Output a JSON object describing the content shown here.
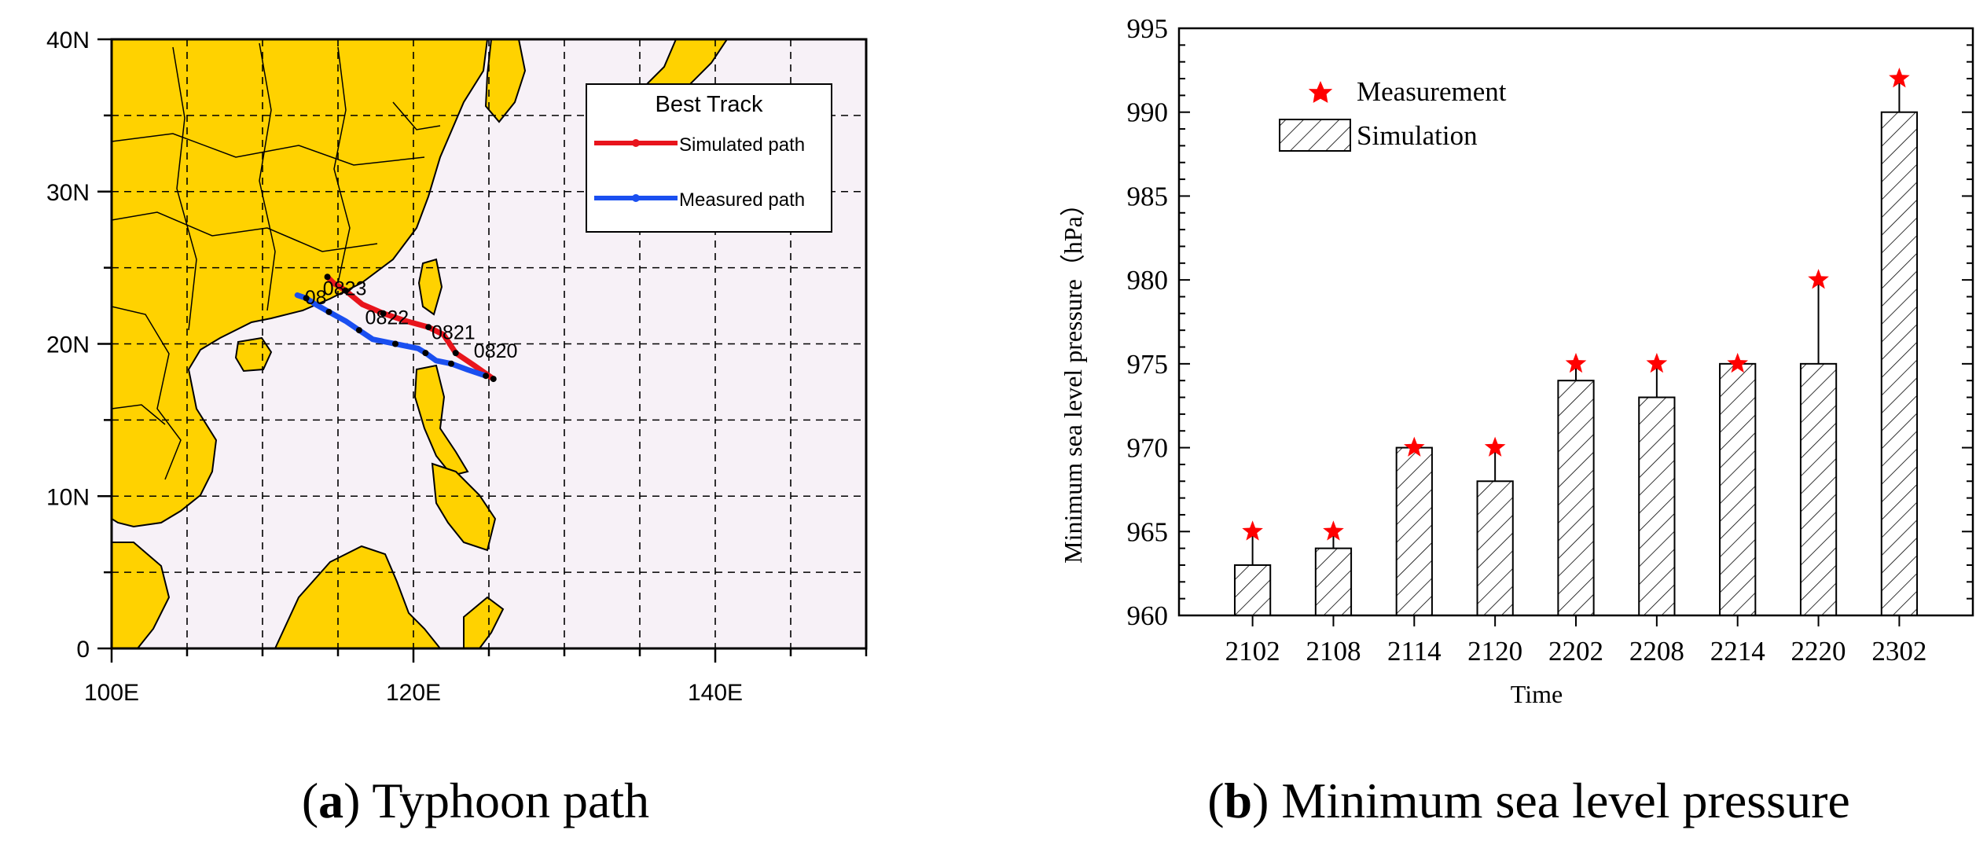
{
  "chart_data": [
    {
      "type": "map",
      "title": "Typhoon path",
      "panel_label": "a",
      "xlim": [
        100,
        150
      ],
      "ylim": [
        0,
        40
      ],
      "xticks": [
        100,
        120,
        140
      ],
      "xtick_labels": [
        "100E",
        "120E",
        "140E"
      ],
      "yticks": [
        0,
        10,
        20,
        30,
        40
      ],
      "ytick_labels": [
        "0",
        "10N",
        "20N",
        "30N",
        "40N"
      ],
      "grid": true,
      "legend": {
        "title": "Best Track",
        "location": "top-right",
        "entries": [
          "Simulated path",
          "Measured path"
        ]
      },
      "colors": {
        "land": "#ffd200",
        "sea": "#f7f1f7",
        "simulated": "#e8141c",
        "measured": "#1a4ff0"
      },
      "series": [
        {
          "name": "Simulated path",
          "points": [
            [
              125.3,
              17.7
            ],
            [
              124.0,
              18.6
            ],
            [
              122.8,
              19.4
            ],
            [
              122.0,
              20.6
            ],
            [
              121.0,
              21.1
            ],
            [
              119.5,
              21.5
            ],
            [
              118.0,
              22.0
            ],
            [
              116.6,
              22.6
            ],
            [
              115.5,
              23.5
            ],
            [
              114.7,
              24.0
            ],
            [
              114.3,
              24.4
            ]
          ]
        },
        {
          "name": "Measured path",
          "points": [
            [
              124.8,
              17.9
            ],
            [
              123.6,
              18.3
            ],
            [
              122.5,
              18.7
            ],
            [
              121.5,
              18.9
            ],
            [
              120.8,
              19.4
            ],
            [
              120.3,
              19.7
            ],
            [
              118.8,
              20.0
            ],
            [
              117.3,
              20.3
            ],
            [
              116.4,
              20.9
            ],
            [
              115.5,
              21.5
            ],
            [
              114.4,
              22.1
            ],
            [
              113.5,
              22.6
            ],
            [
              112.9,
              23.0
            ],
            [
              112.3,
              23.2
            ]
          ]
        }
      ],
      "annotations": [
        {
          "text": "0820",
          "lon": 124.0,
          "lat": 19.1
        },
        {
          "text": "0821",
          "lon": 121.2,
          "lat": 20.3
        },
        {
          "text": "0822",
          "lon": 116.8,
          "lat": 21.3
        },
        {
          "text": "0823",
          "lon": 114.0,
          "lat": 23.2
        },
        {
          "text": "08",
          "lon": 112.8,
          "lat": 22.6
        }
      ]
    },
    {
      "type": "bar",
      "title": "Minimum sea level pressure",
      "panel_label": "b",
      "xlabel": "Time",
      "ylabel": "Minimum sea level pressure（hPa）",
      "categories": [
        "2102",
        "2108",
        "2114",
        "2120",
        "2202",
        "2208",
        "2214",
        "2220",
        "2302"
      ],
      "ylim": [
        960,
        995
      ],
      "yticks": [
        960,
        965,
        970,
        975,
        980,
        985,
        990,
        995
      ],
      "legend_location": "top-left",
      "colors": {
        "marker": "#ff0000",
        "bar": "#000000"
      },
      "series": [
        {
          "name": "Simulation",
          "kind": "hatched-bar",
          "values": [
            963,
            964,
            970,
            968,
            974,
            973,
            975,
            975,
            990
          ]
        },
        {
          "name": "Measurement",
          "kind": "star-marker",
          "values": [
            965,
            965,
            970,
            970,
            975,
            975,
            975,
            980,
            992
          ]
        }
      ]
    }
  ],
  "captions": {
    "a": {
      "label": "a",
      "text": "Typhoon path"
    },
    "b": {
      "label": "b",
      "text": "Minimum sea level pressure"
    }
  }
}
